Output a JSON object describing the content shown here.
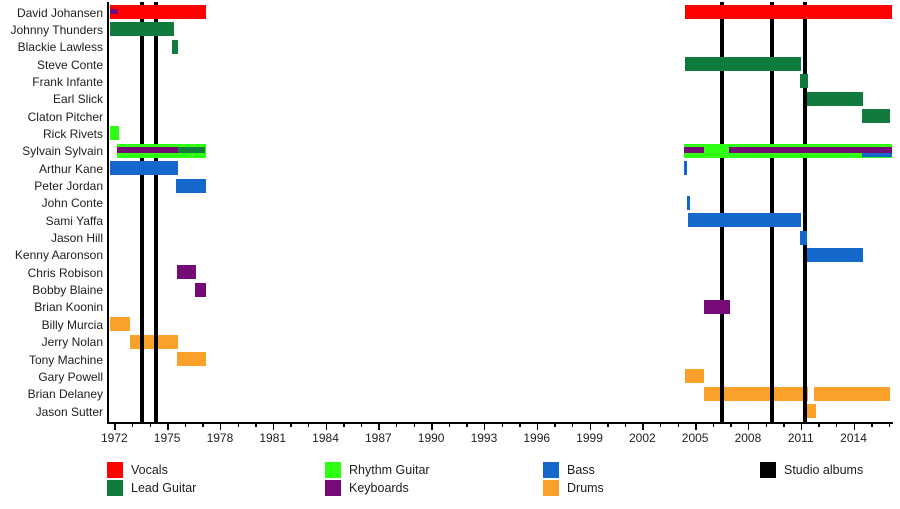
{
  "colors": {
    "vocals": "#FE0100",
    "lead_guitar": "#117B3D",
    "rhythm_guitar": "#2FFF12",
    "keyboards": "#760B77",
    "bass": "#1368C9",
    "drums": "#FAA12B",
    "albums": "#000000"
  },
  "legend": {
    "items": [
      {
        "label": "Vocals",
        "color_key": "vocals",
        "col": 0,
        "row": 0
      },
      {
        "label": "Lead Guitar",
        "color_key": "lead_guitar",
        "col": 0,
        "row": 1
      },
      {
        "label": "Rhythm Guitar",
        "color_key": "rhythm_guitar",
        "col": 1,
        "row": 0
      },
      {
        "label": "Keyboards",
        "color_key": "keyboards",
        "col": 1,
        "row": 1
      },
      {
        "label": "Bass",
        "color_key": "bass",
        "col": 2,
        "row": 0
      },
      {
        "label": "Drums",
        "color_key": "drums",
        "col": 2,
        "row": 1
      },
      {
        "label": "Studio albums",
        "color_key": "albums",
        "col": 3,
        "row": 0
      }
    ]
  },
  "chart_data": {
    "type": "bar",
    "subtype": "gantt-timeline-band-members",
    "x_axis": {
      "start": 1971.64,
      "end": 2016.2,
      "major_ticks": [
        1972,
        1975,
        1978,
        1981,
        1984,
        1987,
        1990,
        1993,
        1996,
        1999,
        2002,
        2005,
        2008,
        2011,
        2014
      ],
      "minor_tick_step": 1,
      "minor_tick_first": 1972,
      "minor_tick_last": 2016
    },
    "album_lines": [
      1973.6,
      1974.35,
      2006.55,
      2009.35,
      2011.25
    ],
    "rows": [
      {
        "name": "David Johansen",
        "segments": [
          {
            "role": "vocals",
            "start": 1971.75,
            "end": 1977.2
          },
          {
            "role": "keyboards",
            "start": 1971.75,
            "end": 1972.2,
            "lane": "mid"
          },
          {
            "role": "vocals",
            "start": 2004.4,
            "end": 2016.2
          }
        ]
      },
      {
        "name": "Johnny Thunders",
        "segments": [
          {
            "role": "lead_guitar",
            "start": 1971.75,
            "end": 1975.4
          }
        ]
      },
      {
        "name": "Blackie Lawless",
        "segments": [
          {
            "role": "lead_guitar",
            "start": 1975.3,
            "end": 1975.6
          }
        ]
      },
      {
        "name": "Steve Conte",
        "segments": [
          {
            "role": "lead_guitar",
            "start": 2004.4,
            "end": 2011.0
          }
        ]
      },
      {
        "name": "Frank Infante",
        "segments": [
          {
            "role": "lead_guitar",
            "start": 2010.95,
            "end": 2011.4
          }
        ]
      },
      {
        "name": "Earl Slick",
        "segments": [
          {
            "role": "lead_guitar",
            "start": 2011.35,
            "end": 2014.55
          }
        ]
      },
      {
        "name": "Claton Pitcher",
        "segments": [
          {
            "role": "lead_guitar",
            "start": 2014.5,
            "end": 2016.1
          }
        ]
      },
      {
        "name": "Rick Rivets",
        "segments": [
          {
            "role": "rhythm_guitar",
            "start": 1971.75,
            "end": 1972.25
          }
        ]
      },
      {
        "name": "Sylvain Sylvain",
        "segments": [
          {
            "role": "rhythm_guitar",
            "start": 1972.15,
            "end": 1977.2
          },
          {
            "role": "keyboards",
            "start": 1972.15,
            "end": 1975.6,
            "lane": "mid"
          },
          {
            "role": "lead_guitar",
            "start": 1975.6,
            "end": 1977.15,
            "lane": "mid"
          },
          {
            "role": "rhythm_guitar",
            "start": 2004.35,
            "end": 2016.2
          },
          {
            "role": "keyboards",
            "start": 2004.35,
            "end": 2005.5,
            "lane": "mid"
          },
          {
            "role": "keyboards",
            "start": 2006.9,
            "end": 2016.2,
            "lane": "mid"
          },
          {
            "role": "bass",
            "start": 2014.5,
            "end": 2016.2,
            "lane": "low"
          }
        ]
      },
      {
        "name": "Arthur Kane",
        "segments": [
          {
            "role": "bass",
            "start": 1971.75,
            "end": 1975.6
          },
          {
            "role": "bass",
            "start": 2004.35,
            "end": 2004.55
          }
        ]
      },
      {
        "name": "Peter Jordan",
        "segments": [
          {
            "role": "bass",
            "start": 1975.5,
            "end": 1977.2
          }
        ]
      },
      {
        "name": "John Conte",
        "segments": [
          {
            "role": "bass",
            "start": 2004.55,
            "end": 2004.7
          }
        ]
      },
      {
        "name": "Sami Yaffa",
        "segments": [
          {
            "role": "bass",
            "start": 2004.6,
            "end": 2011.0
          }
        ]
      },
      {
        "name": "Jason Hill",
        "segments": [
          {
            "role": "bass",
            "start": 2010.95,
            "end": 2011.35
          }
        ]
      },
      {
        "name": "Kenny Aaronson",
        "segments": [
          {
            "role": "bass",
            "start": 2011.35,
            "end": 2014.55
          }
        ]
      },
      {
        "name": "Chris Robison",
        "segments": [
          {
            "role": "keyboards",
            "start": 1975.55,
            "end": 1976.65
          }
        ]
      },
      {
        "name": "Bobby Blaine",
        "segments": [
          {
            "role": "keyboards",
            "start": 1976.6,
            "end": 1977.2
          }
        ]
      },
      {
        "name": "Brian Koonin",
        "segments": [
          {
            "role": "keyboards",
            "start": 2005.5,
            "end": 2007.0
          }
        ]
      },
      {
        "name": "Billy Murcia",
        "segments": [
          {
            "role": "drums",
            "start": 1971.75,
            "end": 1972.9
          }
        ]
      },
      {
        "name": "Jerry Nolan",
        "segments": [
          {
            "role": "drums",
            "start": 1972.9,
            "end": 1975.6
          }
        ]
      },
      {
        "name": "Tony Machine",
        "segments": [
          {
            "role": "drums",
            "start": 1975.55,
            "end": 1977.2
          }
        ]
      },
      {
        "name": "Gary Powell",
        "segments": [
          {
            "role": "drums",
            "start": 2004.4,
            "end": 2005.5
          }
        ]
      },
      {
        "name": "Brian Delaney",
        "segments": [
          {
            "role": "drums",
            "start": 2005.5,
            "end": 2011.4
          },
          {
            "role": "drums",
            "start": 2011.75,
            "end": 2016.1
          }
        ]
      },
      {
        "name": "Jason Sutter",
        "segments": [
          {
            "role": "drums",
            "start": 2011.35,
            "end": 2011.85
          }
        ]
      }
    ]
  }
}
